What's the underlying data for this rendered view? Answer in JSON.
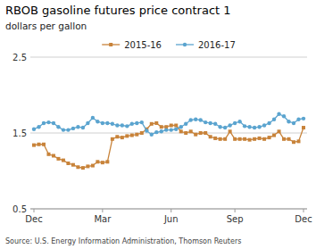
{
  "chart_data": {
    "type": "line",
    "title": "RBOB gasoline futures price contract 1",
    "y_label": "dollars per gallon",
    "source": "Source: U.S. Energy Information Administration, Thomson Reuters",
    "categories": [
      "Dec",
      null,
      null,
      null,
      null,
      null,
      null,
      null,
      null,
      null,
      null,
      null,
      null,
      null,
      "Mar",
      null,
      null,
      null,
      null,
      null,
      null,
      null,
      null,
      null,
      null,
      null,
      null,
      null,
      "Jun",
      null,
      null,
      null,
      null,
      null,
      null,
      null,
      null,
      null,
      null,
      null,
      null,
      "Sep",
      null,
      null,
      null,
      null,
      null,
      null,
      null,
      null,
      null,
      null,
      null,
      null,
      null,
      "Dec"
    ],
    "ylim": [
      0.5,
      2.5
    ],
    "yticks": [
      0.5,
      1.5,
      2.5
    ],
    "grid": true,
    "legend": "top",
    "series": [
      {
        "name": "2015-16",
        "color": "#C8833A",
        "marker": "square",
        "values": [
          1.34,
          1.35,
          1.35,
          1.22,
          1.2,
          1.16,
          1.14,
          1.1,
          1.08,
          1.05,
          1.04,
          1.06,
          1.07,
          1.12,
          1.11,
          1.12,
          1.42,
          1.45,
          1.44,
          1.46,
          1.47,
          1.48,
          1.5,
          1.55,
          1.62,
          1.63,
          1.58,
          1.58,
          1.6,
          1.6,
          1.52,
          1.5,
          1.52,
          1.48,
          1.5,
          1.5,
          1.45,
          1.43,
          1.42,
          1.42,
          1.52,
          1.42,
          1.42,
          1.42,
          1.41,
          1.42,
          1.43,
          1.42,
          1.44,
          1.47,
          1.52,
          1.42,
          1.42,
          1.38,
          1.39,
          1.57
        ]
      },
      {
        "name": "2016-17",
        "color": "#5BA4CF",
        "marker": "circle",
        "values": [
          1.55,
          1.58,
          1.63,
          1.64,
          1.63,
          1.58,
          1.54,
          1.54,
          1.56,
          1.58,
          1.57,
          1.63,
          1.7,
          1.65,
          1.63,
          1.63,
          1.62,
          1.6,
          1.6,
          1.59,
          1.62,
          1.63,
          1.64,
          1.53,
          1.48,
          1.51,
          1.52,
          1.54,
          1.54,
          1.55,
          1.58,
          1.62,
          1.67,
          1.68,
          1.67,
          1.64,
          1.63,
          1.62,
          1.58,
          1.57,
          1.6,
          1.63,
          1.65,
          1.59,
          1.58,
          1.57,
          1.58,
          1.6,
          1.63,
          1.68,
          1.75,
          1.72,
          1.65,
          1.63,
          1.68,
          1.69
        ]
      }
    ]
  }
}
